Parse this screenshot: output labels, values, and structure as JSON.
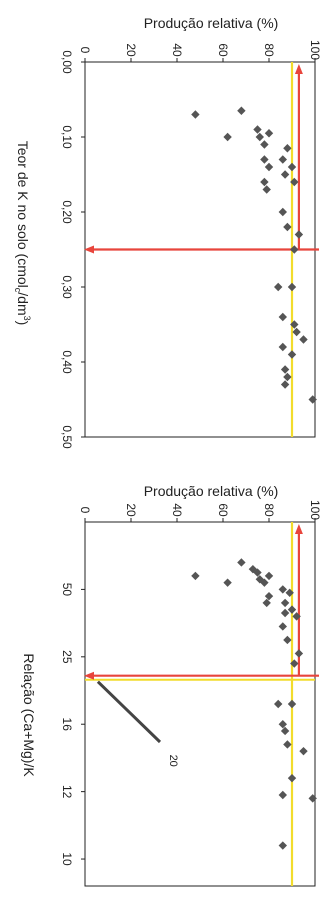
{
  "chart_data": [
    {
      "type": "scatter",
      "orientation": "rotated-90",
      "title": "",
      "ylabel": "Produção relativa (%)",
      "xlabel_main": "Teor de K no solo (cmol",
      "xlabel_sup": "c",
      "xlabel_rest": "/dm",
      "xlabel_exp": "3",
      "xlabel_close": ")",
      "yticks": [
        "0",
        "20",
        "40",
        "60",
        "80",
        "100"
      ],
      "xticks": [
        "0,00",
        "0,10",
        "0,20",
        "0,30",
        "0,40",
        "0,50"
      ],
      "ylim": [
        0,
        100
      ],
      "xlim": [
        0,
        0.5
      ],
      "reference_lines": {
        "horizontal_yellow_y": 90,
        "horizontal_red_y": 93,
        "vertical_red_x": 0.25
      },
      "colors": {
        "points": "#555555",
        "red": "#e8453c",
        "yellow": "#f2dc2c",
        "frame": "#222222"
      },
      "points": [
        {
          "x": 0.07,
          "y": 48
        },
        {
          "x": 0.065,
          "y": 68
        },
        {
          "x": 0.1,
          "y": 62
        },
        {
          "x": 0.09,
          "y": 75
        },
        {
          "x": 0.1,
          "y": 76
        },
        {
          "x": 0.11,
          "y": 78
        },
        {
          "x": 0.095,
          "y": 80
        },
        {
          "x": 0.13,
          "y": 78
        },
        {
          "x": 0.14,
          "y": 80
        },
        {
          "x": 0.16,
          "y": 78
        },
        {
          "x": 0.17,
          "y": 79
        },
        {
          "x": 0.13,
          "y": 86
        },
        {
          "x": 0.115,
          "y": 88
        },
        {
          "x": 0.14,
          "y": 90
        },
        {
          "x": 0.15,
          "y": 87
        },
        {
          "x": 0.16,
          "y": 91
        },
        {
          "x": 0.2,
          "y": 86
        },
        {
          "x": 0.22,
          "y": 88
        },
        {
          "x": 0.23,
          "y": 93
        },
        {
          "x": 0.25,
          "y": 91
        },
        {
          "x": 0.3,
          "y": 84
        },
        {
          "x": 0.3,
          "y": 90
        },
        {
          "x": 0.34,
          "y": 86
        },
        {
          "x": 0.35,
          "y": 91
        },
        {
          "x": 0.36,
          "y": 92
        },
        {
          "x": 0.37,
          "y": 95
        },
        {
          "x": 0.39,
          "y": 90
        },
        {
          "x": 0.38,
          "y": 86
        },
        {
          "x": 0.41,
          "y": 87
        },
        {
          "x": 0.42,
          "y": 88
        },
        {
          "x": 0.43,
          "y": 87
        },
        {
          "x": 0.45,
          "y": 99
        }
      ]
    },
    {
      "type": "scatter",
      "orientation": "rotated-90",
      "title": "",
      "ylabel": "Produção relativa (%)",
      "xlabel": "Relação (Ca+Mg)/K",
      "yticks": [
        "0",
        "20",
        "40",
        "60",
        "80",
        "100"
      ],
      "xticks": [
        "50",
        "25",
        "16",
        "12",
        "10"
      ],
      "xtick_positions": [
        1,
        2,
        3,
        4,
        5
      ],
      "xlim": [
        0,
        5.4
      ],
      "ylim": [
        0,
        100
      ],
      "annotation": {
        "text": "20",
        "x": 1.9,
        "y": 3
      },
      "reference_lines": {
        "horizontal_yellow_y": 90,
        "horizontal_red_y": 93,
        "vertical_red_x": 2.28,
        "vertical_yellow_x": 2.34
      },
      "colors": {
        "points": "#555555",
        "red": "#e8453c",
        "yellow": "#f2dc2c",
        "arrow": "#444444",
        "frame": "#222222"
      },
      "points": [
        {
          "x": 0.8,
          "y": 48
        },
        {
          "x": 0.6,
          "y": 68
        },
        {
          "x": 0.9,
          "y": 62
        },
        {
          "x": 0.7,
          "y": 73
        },
        {
          "x": 0.75,
          "y": 75
        },
        {
          "x": 0.85,
          "y": 76
        },
        {
          "x": 0.8,
          "y": 80
        },
        {
          "x": 0.9,
          "y": 78
        },
        {
          "x": 1.1,
          "y": 80
        },
        {
          "x": 1.2,
          "y": 79
        },
        {
          "x": 1.0,
          "y": 86
        },
        {
          "x": 1.05,
          "y": 89
        },
        {
          "x": 1.2,
          "y": 87
        },
        {
          "x": 1.3,
          "y": 90
        },
        {
          "x": 1.35,
          "y": 87
        },
        {
          "x": 1.4,
          "y": 92
        },
        {
          "x": 1.55,
          "y": 86
        },
        {
          "x": 1.75,
          "y": 88
        },
        {
          "x": 1.95,
          "y": 93
        },
        {
          "x": 2.1,
          "y": 91
        },
        {
          "x": 2.7,
          "y": 84
        },
        {
          "x": 2.7,
          "y": 90
        },
        {
          "x": 3.0,
          "y": 86
        },
        {
          "x": 3.1,
          "y": 87
        },
        {
          "x": 3.3,
          "y": 88
        },
        {
          "x": 3.4,
          "y": 95
        },
        {
          "x": 3.8,
          "y": 90
        },
        {
          "x": 4.05,
          "y": 86
        },
        {
          "x": 4.1,
          "y": 99
        },
        {
          "x": 4.8,
          "y": 86
        }
      ]
    }
  ]
}
